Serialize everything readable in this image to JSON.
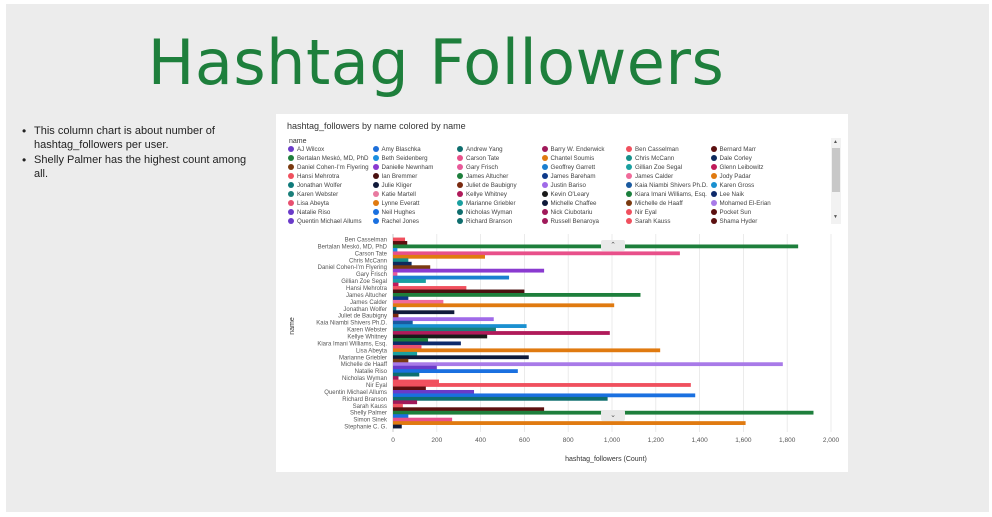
{
  "slide": {
    "title": "Hashtag Followers",
    "bullets": [
      "This column chart is about number of hashtag_followers per user.",
      "Shelly Palmer has the highest count among all."
    ]
  },
  "panel": {
    "collapse_icon_top": "chevron-up-icon",
    "collapse_icon_bottom": "chevron-down-icon"
  },
  "legend": {
    "title": "name",
    "items": [
      {
        "label": "AJ Wilcox",
        "color": "#6a3bc9"
      },
      {
        "label": "Amy Blaschka",
        "color": "#1e6fd9"
      },
      {
        "label": "Andrew Yang",
        "color": "#0f6e6e"
      },
      {
        "label": "Barry W. Enderwick",
        "color": "#a0195a"
      },
      {
        "label": "Ben Casselman",
        "color": "#f0505e"
      },
      {
        "label": "Bernard Marr",
        "color": "#5c1010"
      },
      {
        "label": "Bertalan Meskó, MD, PhD",
        "color": "#1e7f3c"
      },
      {
        "label": "Beth Seidenberg",
        "color": "#1a8fe0"
      },
      {
        "label": "Carson Tate",
        "color": "#e8508a"
      },
      {
        "label": "Chantel Soumis",
        "color": "#e07a10"
      },
      {
        "label": "Chris McCann",
        "color": "#15908a"
      },
      {
        "label": "Dale Corley",
        "color": "#0e2a5c"
      },
      {
        "label": "Daniel Cohen-I’m Flyering",
        "color": "#7a3a10"
      },
      {
        "label": "Danielle Newnham",
        "color": "#8a3ad0"
      },
      {
        "label": "Gary Frisch",
        "color": "#e85a9a"
      },
      {
        "label": "Geoffrey Garrett",
        "color": "#1a7fd0"
      },
      {
        "label": "Gillian Zoe Segal",
        "color": "#1aa0a0"
      },
      {
        "label": "Glenn Leibowitz",
        "color": "#c01a5a"
      },
      {
        "label": "Hansi Mehrotra",
        "color": "#f0505e"
      },
      {
        "label": "Ian Bremmer",
        "color": "#4a1010"
      },
      {
        "label": "James Altucher",
        "color": "#1e7f3c"
      },
      {
        "label": "James Bareham",
        "color": "#0e3a8a"
      },
      {
        "label": "James Calder",
        "color": "#f06a9a"
      },
      {
        "label": "Jody Padar",
        "color": "#e07a10"
      },
      {
        "label": "Jonathan Wolfer",
        "color": "#0f7a7a"
      },
      {
        "label": "Julie Kliger",
        "color": "#101a3a"
      },
      {
        "label": "Juliet de Baubigny",
        "color": "#7a2a10"
      },
      {
        "label": "Justin Bariso",
        "color": "#a06ae8"
      },
      {
        "label": "Kaia Niambi Shivers Ph.D.",
        "color": "#1a5aa0"
      },
      {
        "label": "Karen Gross",
        "color": "#1a90d0"
      },
      {
        "label": "Karen Webster",
        "color": "#1a7f7a"
      },
      {
        "label": "Katie Martell",
        "color": "#e87aa0"
      },
      {
        "label": "Kellye Whitney",
        "color": "#b01a5a"
      },
      {
        "label": "Kevin O'Leary",
        "color": "#1a1a1a"
      },
      {
        "label": "Kiara Imani Williams, Esq.",
        "color": "#1a7f3c"
      },
      {
        "label": "Lee Naik",
        "color": "#0e2a6a"
      },
      {
        "label": "Lisa Abeyta",
        "color": "#e85070"
      },
      {
        "label": "Lynne Everatt",
        "color": "#e07a10"
      },
      {
        "label": "Marianne Griebler",
        "color": "#1aa0a0"
      },
      {
        "label": "Michelle Chaffee",
        "color": "#0e1a3a"
      },
      {
        "label": "Michelle de Haaff",
        "color": "#7a3a10"
      },
      {
        "label": "Mohamed El-Erian",
        "color": "#a87ae8"
      },
      {
        "label": "Natalie Riso",
        "color": "#6a3bc9"
      },
      {
        "label": "Neil Hughes",
        "color": "#1a70e0"
      },
      {
        "label": "Nicholas Wyman",
        "color": "#0f6e6e"
      },
      {
        "label": "Nick Ciubotariu",
        "color": "#a0195a"
      },
      {
        "label": "Nir Eyal",
        "color": "#f0505e"
      },
      {
        "label": "Pocket Sun",
        "color": "#5c1010"
      },
      {
        "label": "Quentin Michael Allums",
        "color": "#6a3bc9"
      },
      {
        "label": "Rachel Jones",
        "color": "#1a70e0"
      },
      {
        "label": "Richard Branson",
        "color": "#0f6e6e"
      },
      {
        "label": "Russell Benaroya",
        "color": "#a0195a"
      },
      {
        "label": "Sarah Kauss",
        "color": "#f0505e"
      },
      {
        "label": "Shama Hyder",
        "color": "#5c1010"
      }
    ]
  },
  "chart_data": {
    "type": "bar",
    "orientation": "horizontal",
    "title": "hashtag_followers by name colored by name",
    "xlabel": "hashtag_followers (Count)",
    "ylabel": "name",
    "xlim": [
      0,
      2000
    ],
    "xticks": [
      "0",
      "200",
      "400",
      "600",
      "800",
      "1,000",
      "1,200",
      "1,400",
      "1,600",
      "1,800",
      "2,000"
    ],
    "grid": true,
    "legend_position": "top",
    "categories": [
      "Ben Casselman",
      "Bertalan Meskó, MD, PhD",
      "Carson Tate",
      "Chris McCann",
      "Daniel Cohen-I’m Flyering",
      "Gary Frisch",
      "Gillian Zoe Segal",
      "Hansi Mehrotra",
      "James Altucher",
      "James Calder",
      "Jonathan Wolfer",
      "Juliet de Baubigny",
      "Kaia Niambi Shivers Ph.D.",
      "Karen Webster",
      "Kellye Whitney",
      "Kiara Imani Williams, Esq.",
      "Lisa Abeyta",
      "Marianne Griebler",
      "Michelle de Haaff",
      "Natalie Riso",
      "Nicholas Wyman",
      "Nir Eyal",
      "Quentin Michael Allums",
      "Richard Branson",
      "Sarah Kauss",
      "Shelly Palmer",
      "Simon Sinek",
      "Stephanie C. G."
    ],
    "bars": [
      {
        "row": 0,
        "name": "Ben Casselman",
        "value": 55,
        "color": "#f0505e"
      },
      {
        "row": 0.5,
        "name": "Bernard Marr",
        "value": 65,
        "color": "#5c1010"
      },
      {
        "row": 1,
        "name": "Bertalan Meskó, MD, PhD",
        "value": 1850,
        "color": "#1e7f3c"
      },
      {
        "row": 1.5,
        "name": "Beth Seidenberg",
        "value": 20,
        "color": "#1a8fe0"
      },
      {
        "row": 2,
        "name": "Carson Tate",
        "value": 1310,
        "color": "#e8508a"
      },
      {
        "row": 2.5,
        "name": "Chantel Soumis",
        "value": 420,
        "color": "#e07a10"
      },
      {
        "row": 3,
        "name": "Chris McCann",
        "value": 70,
        "color": "#15908a"
      },
      {
        "row": 3.5,
        "name": "Dale Corley",
        "value": 85,
        "color": "#0e2a5c"
      },
      {
        "row": 4,
        "name": "Daniel Cohen-I’m Flyering",
        "value": 170,
        "color": "#7a3a10"
      },
      {
        "row": 4.5,
        "name": "Danielle Newnham",
        "value": 690,
        "color": "#8a3ad0"
      },
      {
        "row": 5,
        "name": "Gary Frisch",
        "value": 20,
        "color": "#e85a9a"
      },
      {
        "row": 5.5,
        "name": "Geoffrey Garrett",
        "value": 530,
        "color": "#1a7fd0"
      },
      {
        "row": 6,
        "name": "Gillian Zoe Segal",
        "value": 150,
        "color": "#1aa0a0"
      },
      {
        "row": 6.5,
        "name": "Glenn Leibowitz",
        "value": 25,
        "color": "#c01a5a"
      },
      {
        "row": 7,
        "name": "Hansi Mehrotra",
        "value": 335,
        "color": "#f0505e"
      },
      {
        "row": 7.5,
        "name": "Ian Bremmer",
        "value": 600,
        "color": "#4a1010"
      },
      {
        "row": 8,
        "name": "James Altucher",
        "value": 1130,
        "color": "#1e7f3c"
      },
      {
        "row": 8.5,
        "name": "James Bareham",
        "value": 70,
        "color": "#0e3a8a"
      },
      {
        "row": 9,
        "name": "James Calder",
        "value": 230,
        "color": "#f06a9a"
      },
      {
        "row": 9.5,
        "name": "Jody Padar",
        "value": 1010,
        "color": "#e07a10"
      },
      {
        "row": 10,
        "name": "Jonathan Wolfer",
        "value": 15,
        "color": "#0f7a7a"
      },
      {
        "row": 10.5,
        "name": "Julie Kliger",
        "value": 280,
        "color": "#101a3a"
      },
      {
        "row": 11,
        "name": "Juliet de Baubigny",
        "value": 25,
        "color": "#7a2a10"
      },
      {
        "row": 11.5,
        "name": "Justin Bariso",
        "value": 460,
        "color": "#a06ae8"
      },
      {
        "row": 12,
        "name": "Kaia Niambi Shivers Ph.D.",
        "value": 90,
        "color": "#1a5aa0"
      },
      {
        "row": 12.5,
        "name": "Karen Gross",
        "value": 610,
        "color": "#1a90d0"
      },
      {
        "row": 13,
        "name": "Karen Webster",
        "value": 470,
        "color": "#1a7f7a"
      },
      {
        "row": 13.5,
        "name": "Kellye Whitney",
        "value": 990,
        "color": "#b01a5a"
      },
      {
        "row": 14,
        "name": "Kevin O'Leary",
        "value": 430,
        "color": "#1a1a1a"
      },
      {
        "row": 14.5,
        "name": "Kiara Imani Williams, Esq.",
        "value": 160,
        "color": "#1a7f3c"
      },
      {
        "row": 15,
        "name": "Lee Naik",
        "value": 310,
        "color": "#0e2a6a"
      },
      {
        "row": 15.5,
        "name": "Lisa Abeyta",
        "value": 130,
        "color": "#e85070"
      },
      {
        "row": 16,
        "name": "Lynne Everatt",
        "value": 1220,
        "color": "#e07a10"
      },
      {
        "row": 16.5,
        "name": "Marianne Griebler",
        "value": 110,
        "color": "#1aa0a0"
      },
      {
        "row": 17,
        "name": "Michelle Chaffee",
        "value": 620,
        "color": "#0e1a3a"
      },
      {
        "row": 17.5,
        "name": "Michelle de Haaff",
        "value": 70,
        "color": "#7a3a10"
      },
      {
        "row": 18,
        "name": "Mohamed El-Erian",
        "value": 1780,
        "color": "#a87ae8"
      },
      {
        "row": 18.5,
        "name": "Natalie Riso",
        "value": 200,
        "color": "#6a3bc9"
      },
      {
        "row": 19,
        "name": "Neil Hughes",
        "value": 570,
        "color": "#1a70e0"
      },
      {
        "row": 19.5,
        "name": "Nicholas Wyman",
        "value": 120,
        "color": "#0f6e6e"
      },
      {
        "row": 20,
        "name": "Nick Ciubotariu",
        "value": 25,
        "color": "#a0195a"
      },
      {
        "row": 20.5,
        "name": "Nir Eyal",
        "value": 210,
        "color": "#f0505e"
      },
      {
        "row": 21,
        "name": "Nir Eyal",
        "value": 1360,
        "color": "#f0505e"
      },
      {
        "row": 21.5,
        "name": "Pocket Sun",
        "value": 150,
        "color": "#5c1010"
      },
      {
        "row": 22,
        "name": "Quentin Michael Allums",
        "value": 370,
        "color": "#6a3bc9"
      },
      {
        "row": 22.5,
        "name": "Rachel Jones",
        "value": 1380,
        "color": "#1a70e0"
      },
      {
        "row": 23,
        "name": "Richard Branson",
        "value": 980,
        "color": "#0f6e6e"
      },
      {
        "row": 23.5,
        "name": "Russell Benaroya",
        "value": 110,
        "color": "#a0195a"
      },
      {
        "row": 24,
        "name": "Sarah Kauss",
        "value": 45,
        "color": "#f0505e"
      },
      {
        "row": 24.5,
        "name": "Shama Hyder",
        "value": 690,
        "color": "#5c1010"
      },
      {
        "row": 25,
        "name": "Shelly Palmer",
        "value": 1920,
        "color": "#1e7f3c"
      },
      {
        "row": 25.5,
        "name": "Shelly Palmer (2)",
        "value": 70,
        "color": "#1a70e0"
      },
      {
        "row": 26,
        "name": "Simon Sinek",
        "value": 270,
        "color": "#e8508a"
      },
      {
        "row": 26.5,
        "name": "Simon Sinek (2)",
        "value": 1610,
        "color": "#e07a10"
      },
      {
        "row": 27,
        "name": "Stephanie C. G.",
        "value": 40,
        "color": "#101a3a"
      }
    ]
  }
}
